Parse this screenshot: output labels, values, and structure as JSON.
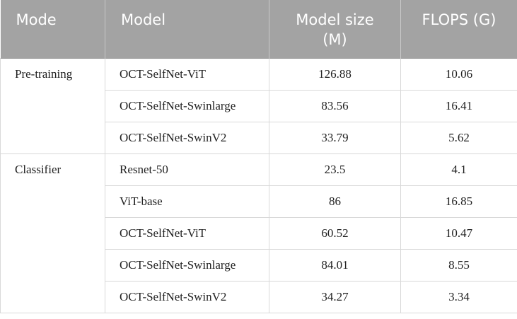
{
  "table": {
    "header": [
      "Mode",
      "Model",
      "Model size (M)",
      "FLOPS (G)"
    ],
    "groups": [
      {
        "mode": "Pre-training",
        "rows": [
          [
            "OCT-SelfNet-ViT",
            126.88,
            10.06
          ],
          [
            "OCT-SelfNet-Swinlarge",
            83.56,
            16.41
          ],
          [
            "OCT-SelfNet-SwinV2",
            33.79,
            5.62
          ]
        ]
      },
      {
        "mode": "Classifier",
        "rows": [
          [
            "Resnet-50",
            23.5,
            4.1
          ],
          [
            "ViT-base",
            86,
            16.85
          ],
          [
            "OCT-SelfNet-ViT",
            60.52,
            10.47
          ],
          [
            "OCT-SelfNet-Swinlarge",
            84.01,
            8.55
          ],
          [
            "OCT-SelfNet-SwinV2",
            34.27,
            3.34
          ]
        ]
      }
    ]
  }
}
